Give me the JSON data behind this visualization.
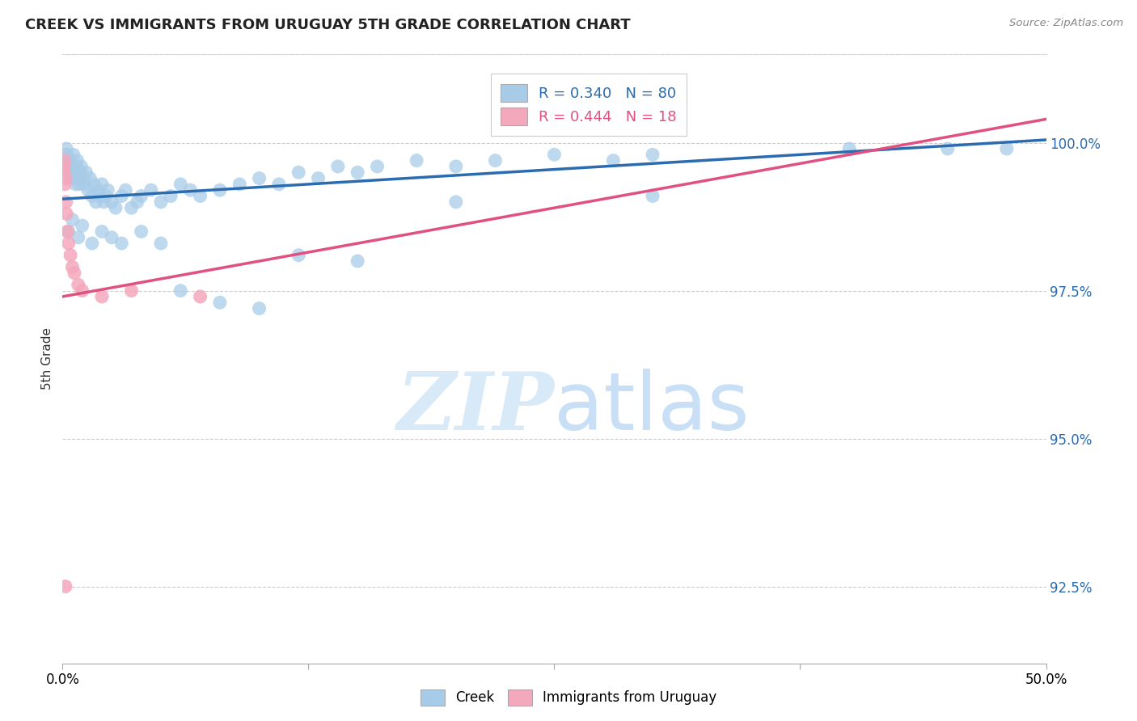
{
  "title": "CREEK VS IMMIGRANTS FROM URUGUAY 5TH GRADE CORRELATION CHART",
  "source": "Source: ZipAtlas.com",
  "ylabel": "5th Grade",
  "xlim": [
    0.0,
    50.0
  ],
  "ylim": [
    91.2,
    101.5
  ],
  "yticks": [
    92.5,
    95.0,
    97.5,
    100.0
  ],
  "ytick_labels": [
    "92.5%",
    "95.0%",
    "97.5%",
    "100.0%"
  ],
  "creek_color": "#a8cce8",
  "uruguay_color": "#f4a8bc",
  "creek_line_color": "#2b6cb0",
  "uruguay_line_color": "#e05080",
  "legend_creek_label": "R = 0.340   N = 80",
  "legend_uruguay_label": "R = 0.444   N = 18",
  "background_color": "#ffffff",
  "grid_color": "#cccccc",
  "watermark_zip": "ZIP",
  "watermark_atlas": "atlas",
  "watermark_color": "#d8eaf8",
  "creek_scatter_x": [
    0.1,
    0.15,
    0.2,
    0.25,
    0.3,
    0.35,
    0.4,
    0.45,
    0.5,
    0.55,
    0.6,
    0.65,
    0.7,
    0.75,
    0.8,
    0.85,
    0.9,
    0.95,
    1.0,
    1.1,
    1.2,
    1.3,
    1.4,
    1.5,
    1.6,
    1.7,
    1.8,
    1.9,
    2.0,
    2.1,
    2.2,
    2.3,
    2.5,
    2.7,
    3.0,
    3.2,
    3.5,
    3.8,
    4.0,
    4.5,
    5.0,
    5.5,
    6.0,
    6.5,
    7.0,
    8.0,
    9.0,
    10.0,
    11.0,
    12.0,
    13.0,
    14.0,
    15.0,
    16.0,
    18.0,
    20.0,
    22.0,
    25.0,
    28.0,
    30.0,
    0.3,
    0.5,
    0.8,
    1.0,
    1.5,
    2.0,
    2.5,
    3.0,
    4.0,
    5.0,
    6.0,
    8.0,
    10.0,
    12.0,
    15.0,
    20.0,
    30.0,
    40.0,
    45.0,
    48.0
  ],
  "creek_scatter_y": [
    99.7,
    99.8,
    99.9,
    99.8,
    99.6,
    99.7,
    99.5,
    99.4,
    99.6,
    99.8,
    99.5,
    99.3,
    99.6,
    99.7,
    99.4,
    99.3,
    99.5,
    99.6,
    99.4,
    99.3,
    99.5,
    99.2,
    99.4,
    99.1,
    99.3,
    99.0,
    99.2,
    99.1,
    99.3,
    99.0,
    99.1,
    99.2,
    99.0,
    98.9,
    99.1,
    99.2,
    98.9,
    99.0,
    99.1,
    99.2,
    99.0,
    99.1,
    99.3,
    99.2,
    99.1,
    99.2,
    99.3,
    99.4,
    99.3,
    99.5,
    99.4,
    99.6,
    99.5,
    99.6,
    99.7,
    99.6,
    99.7,
    99.8,
    99.7,
    99.8,
    98.5,
    98.7,
    98.4,
    98.6,
    98.3,
    98.5,
    98.4,
    98.3,
    98.5,
    98.3,
    97.5,
    97.3,
    97.2,
    98.1,
    98.0,
    99.0,
    99.1,
    99.9,
    99.9,
    99.9
  ],
  "uruguay_scatter_x": [
    0.05,
    0.08,
    0.1,
    0.12,
    0.15,
    0.18,
    0.2,
    0.25,
    0.3,
    0.4,
    0.5,
    0.6,
    0.8,
    1.0,
    2.0,
    3.5,
    7.0,
    0.15
  ],
  "uruguay_scatter_y": [
    99.6,
    99.5,
    99.7,
    99.3,
    99.4,
    99.0,
    98.8,
    98.5,
    98.3,
    98.1,
    97.9,
    97.8,
    97.6,
    97.5,
    97.4,
    97.5,
    97.4,
    92.5
  ],
  "creek_line_x0": 0.0,
  "creek_line_x1": 50.0,
  "creek_line_y0": 99.05,
  "creek_line_y1": 100.05,
  "uruguay_line_x0": 0.0,
  "uruguay_line_x1": 50.0,
  "uruguay_line_y0": 97.4,
  "uruguay_line_y1": 100.4
}
